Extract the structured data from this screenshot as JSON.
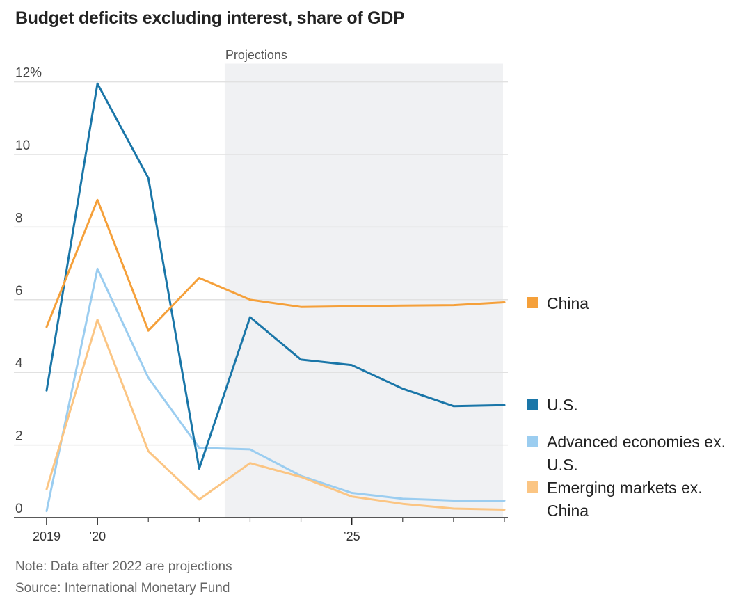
{
  "title": "Budget deficits excluding interest, share of GDP",
  "projections_label": "Projections",
  "note": "Note: Data after 2022 are projections",
  "source": "Source: International Monetary Fund",
  "chart_data": {
    "type": "line",
    "x": [
      2019,
      2020,
      2021,
      2022,
      2023,
      2024,
      2025,
      2026,
      2027,
      2028
    ],
    "x_tick_labels": [
      {
        "x": 2019,
        "label": "2019"
      },
      {
        "x": 2020,
        "label": "’20"
      },
      {
        "x": 2025,
        "label": "’25"
      }
    ],
    "x_minor_ticks": [
      2021,
      2022,
      2023,
      2024,
      2026,
      2027,
      2028
    ],
    "y_ticks": [
      {
        "value": 0,
        "label": "0"
      },
      {
        "value": 2,
        "label": "2"
      },
      {
        "value": 4,
        "label": "4"
      },
      {
        "value": 6,
        "label": "6"
      },
      {
        "value": 8,
        "label": "8"
      },
      {
        "value": 10,
        "label": "10"
      },
      {
        "value": 12,
        "label": "12%"
      }
    ],
    "ylim": [
      0,
      12.5
    ],
    "projection_start": 2022.5,
    "grid": true,
    "legend_placement": "right",
    "series": [
      {
        "name": "China",
        "color": "#f5a03a",
        "values": [
          5.25,
          8.75,
          5.15,
          6.6,
          6.0,
          5.8,
          5.82,
          5.84,
          5.85,
          5.93
        ]
      },
      {
        "name": "U.S.",
        "color": "#1a76a8",
        "values": [
          3.5,
          11.95,
          9.35,
          1.35,
          5.52,
          4.35,
          4.2,
          3.55,
          3.07,
          3.1
        ]
      },
      {
        "name": "Advanced economies ex. U.S.",
        "color": "#9bcdf0",
        "values": [
          0.18,
          6.85,
          3.85,
          1.92,
          1.88,
          1.15,
          0.68,
          0.52,
          0.47,
          0.47
        ]
      },
      {
        "name": "Emerging markets ex. China",
        "color": "#fbc583",
        "values": [
          0.78,
          5.45,
          1.83,
          0.5,
          1.5,
          1.12,
          0.58,
          0.38,
          0.25,
          0.22
        ]
      }
    ]
  }
}
